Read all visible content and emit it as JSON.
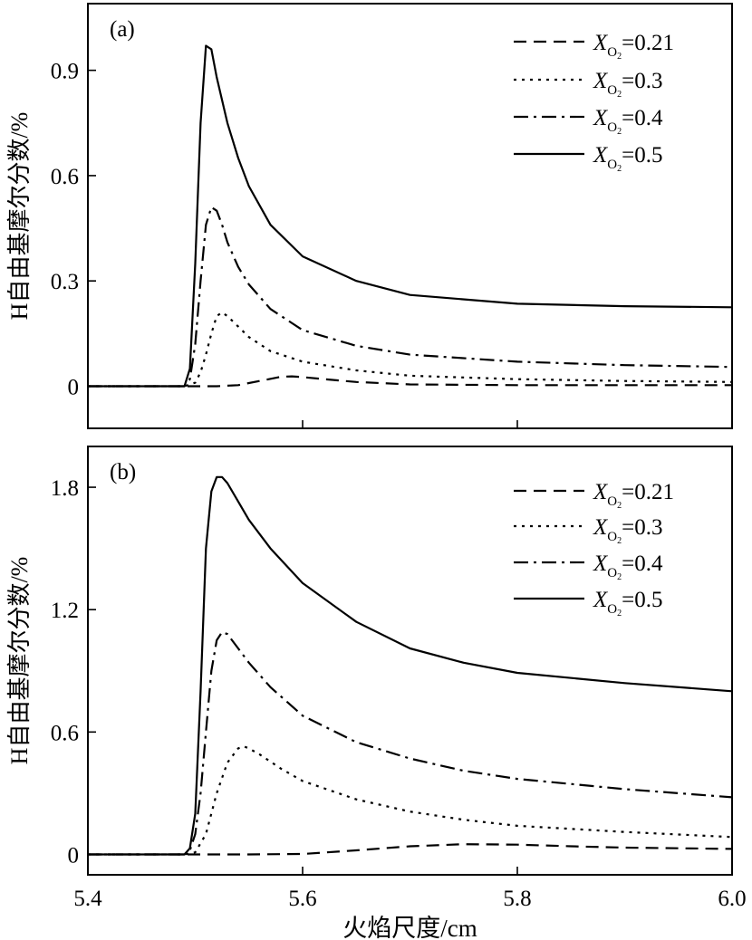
{
  "chart_data": [
    {
      "type": "line",
      "panel_label": "(a)",
      "ylabel": "H自由基摩尔分数/%",
      "xlabel": "",
      "xlim": [
        5.4,
        6.0
      ],
      "ylim": [
        -0.12,
        1.09
      ],
      "x_ticks": [
        "5.4",
        "5.6",
        "5.8",
        "6.0"
      ],
      "x_tick_values": [
        5.4,
        5.6,
        5.8,
        6.0
      ],
      "y_ticks": [
        "0",
        "0.3",
        "0.6",
        "0.9"
      ],
      "y_tick_values": [
        0,
        0.3,
        0.6,
        0.9
      ],
      "legend_position": "top-right",
      "series": [
        {
          "label_var": "X",
          "label_sub": "O",
          "label_subsub": "2",
          "label_val": "=0.21",
          "line_style": "dashed",
          "x": [
            5.4,
            5.49,
            5.5,
            5.52,
            5.54,
            5.56,
            5.58,
            5.59,
            5.6,
            5.62,
            5.65,
            5.7,
            5.8,
            5.9,
            6.0
          ],
          "y": [
            0,
            0,
            0,
            0,
            0.003,
            0.015,
            0.027,
            0.028,
            0.026,
            0.02,
            0.012,
            0.005,
            0.003,
            0.003,
            0.003
          ]
        },
        {
          "label_var": "X",
          "label_sub": "O",
          "label_subsub": "2",
          "label_val": "=0.3",
          "line_style": "dotted",
          "x": [
            5.4,
            5.49,
            5.5,
            5.505,
            5.51,
            5.515,
            5.52,
            5.525,
            5.53,
            5.54,
            5.55,
            5.57,
            5.6,
            5.65,
            5.7,
            5.8,
            5.9,
            6.0
          ],
          "y": [
            0,
            0,
            0.01,
            0.04,
            0.09,
            0.15,
            0.2,
            0.21,
            0.2,
            0.17,
            0.14,
            0.1,
            0.07,
            0.045,
            0.03,
            0.02,
            0.015,
            0.012
          ]
        },
        {
          "label_var": "X",
          "label_sub": "O",
          "label_subsub": "2",
          "label_val": "=0.4",
          "line_style": "dashdot",
          "x": [
            5.4,
            5.49,
            5.495,
            5.5,
            5.505,
            5.51,
            5.515,
            5.52,
            5.525,
            5.53,
            5.54,
            5.55,
            5.57,
            5.6,
            5.65,
            5.7,
            5.8,
            5.9,
            6.0
          ],
          "y": [
            0,
            0,
            0.02,
            0.12,
            0.3,
            0.46,
            0.51,
            0.5,
            0.46,
            0.41,
            0.34,
            0.29,
            0.22,
            0.16,
            0.115,
            0.09,
            0.07,
            0.06,
            0.055
          ]
        },
        {
          "label_var": "X",
          "label_sub": "O",
          "label_subsub": "2",
          "label_val": "=0.5",
          "line_style": "solid",
          "x": [
            5.4,
            5.49,
            5.495,
            5.5,
            5.505,
            5.51,
            5.515,
            5.52,
            5.53,
            5.54,
            5.55,
            5.57,
            5.6,
            5.65,
            5.7,
            5.8,
            5.9,
            6.0
          ],
          "y": [
            0,
            0,
            0.05,
            0.35,
            0.75,
            0.97,
            0.96,
            0.88,
            0.75,
            0.65,
            0.57,
            0.46,
            0.37,
            0.3,
            0.26,
            0.235,
            0.228,
            0.225
          ]
        }
      ]
    },
    {
      "type": "line",
      "panel_label": "(b)",
      "ylabel": "H自由基摩尔分数/%",
      "xlabel": "火焰尺度/cm",
      "xlim": [
        5.4,
        6.0
      ],
      "ylim": [
        -0.1,
        2.0
      ],
      "x_ticks": [
        "5.4",
        "5.6",
        "5.8",
        "6.0"
      ],
      "x_tick_values": [
        5.4,
        5.6,
        5.8,
        6.0
      ],
      "y_ticks": [
        "0",
        "0.6",
        "1.2",
        "1.8"
      ],
      "y_tick_values": [
        0,
        0.6,
        1.2,
        1.8
      ],
      "legend_position": "top-right",
      "series": [
        {
          "label_var": "X",
          "label_sub": "O",
          "label_subsub": "2",
          "label_val": "=0.21",
          "line_style": "dashed",
          "x": [
            5.4,
            5.49,
            5.5,
            5.55,
            5.6,
            5.65,
            5.7,
            5.75,
            5.8,
            5.85,
            5.9,
            6.0
          ],
          "y": [
            0,
            0,
            0,
            0,
            0.002,
            0.02,
            0.04,
            0.05,
            0.048,
            0.04,
            0.033,
            0.027
          ]
        },
        {
          "label_var": "X",
          "label_sub": "O",
          "label_subsub": "2",
          "label_val": "=0.3",
          "line_style": "dotted",
          "x": [
            5.4,
            5.49,
            5.5,
            5.51,
            5.52,
            5.53,
            5.54,
            5.545,
            5.55,
            5.56,
            5.58,
            5.6,
            5.65,
            5.7,
            5.75,
            5.8,
            5.9,
            6.0
          ],
          "y": [
            0,
            0,
            0.01,
            0.1,
            0.3,
            0.45,
            0.52,
            0.53,
            0.52,
            0.49,
            0.42,
            0.36,
            0.27,
            0.21,
            0.17,
            0.14,
            0.11,
            0.085
          ]
        },
        {
          "label_var": "X",
          "label_sub": "O",
          "label_subsub": "2",
          "label_val": "=0.4",
          "line_style": "dashdot",
          "x": [
            5.4,
            5.49,
            5.495,
            5.5,
            5.505,
            5.51,
            5.515,
            5.52,
            5.525,
            5.53,
            5.54,
            5.55,
            5.57,
            5.6,
            5.65,
            5.7,
            5.75,
            5.8,
            5.9,
            6.0
          ],
          "y": [
            0,
            0,
            0.02,
            0.1,
            0.3,
            0.6,
            0.9,
            1.05,
            1.09,
            1.08,
            1.01,
            0.94,
            0.82,
            0.68,
            0.55,
            0.47,
            0.41,
            0.37,
            0.32,
            0.28
          ]
        },
        {
          "label_var": "X",
          "label_sub": "O",
          "label_subsub": "2",
          "label_val": "=0.5",
          "line_style": "solid",
          "x": [
            5.4,
            5.49,
            5.495,
            5.5,
            5.505,
            5.51,
            5.515,
            5.52,
            5.525,
            5.53,
            5.54,
            5.55,
            5.57,
            5.6,
            5.65,
            5.7,
            5.75,
            5.8,
            5.9,
            6.0
          ],
          "y": [
            0,
            0,
            0.03,
            0.2,
            0.8,
            1.5,
            1.78,
            1.85,
            1.85,
            1.82,
            1.73,
            1.64,
            1.5,
            1.33,
            1.14,
            1.01,
            0.94,
            0.89,
            0.84,
            0.8
          ]
        }
      ]
    }
  ]
}
